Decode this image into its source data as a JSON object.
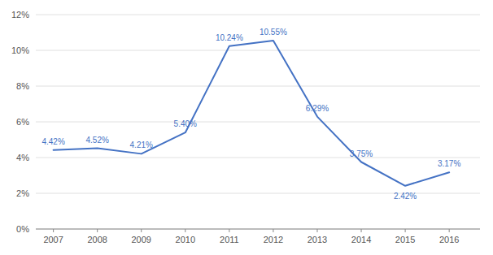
{
  "chart_data": {
    "type": "line",
    "x": [
      2007,
      2008,
      2009,
      2010,
      2011,
      2012,
      2013,
      2014,
      2015,
      2016
    ],
    "values": [
      4.42,
      4.52,
      4.21,
      5.4,
      10.24,
      10.55,
      6.29,
      3.75,
      2.42,
      3.17
    ],
    "value_labels": [
      "4.42%",
      "4.52%",
      "4.21%",
      "5.40%",
      "10.24%",
      "10.55%",
      "6.29%",
      "3.75%",
      "2.42%",
      "3.17%"
    ],
    "data_labels": true,
    "color": "#4472C4",
    "xlim": [
      2006.6,
      2016.7
    ],
    "xticks": [
      2007,
      2008,
      2009,
      2010,
      2011,
      2012,
      2013,
      2014,
      2015,
      2016
    ],
    "ylim": [
      0,
      12
    ],
    "yticks": [
      {
        "value": 0,
        "label": "0%"
      },
      {
        "value": 2,
        "label": "2%"
      },
      {
        "value": 4,
        "label": "4%"
      },
      {
        "value": 6,
        "label": "6%"
      },
      {
        "value": 8,
        "label": "8%"
      },
      {
        "value": 10,
        "label": "10%"
      },
      {
        "value": 12,
        "label": "12%"
      }
    ],
    "grid": true
  }
}
